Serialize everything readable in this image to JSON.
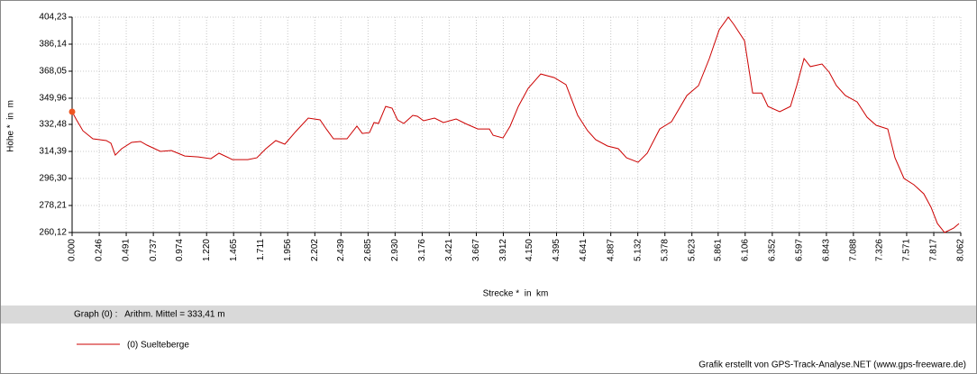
{
  "chart_data": {
    "type": "line",
    "y_label": "Höhe *  in  m",
    "x_label": "Strecke *  in  km",
    "stats": "Graph (0) :   Arithm. Mittel = 333,41 m",
    "credit": "Grafik erstellt von GPS-Track-Analyse.NET (www.gps-freeware.de)",
    "grid": true,
    "xlim": [
      0,
      8.062
    ],
    "ylim": [
      260.12,
      404.23
    ],
    "yticks": [
      {
        "value": 260.12,
        "label": "260,12"
      },
      {
        "value": 278.21,
        "label": "278,21"
      },
      {
        "value": 296.3,
        "label": "296,30"
      },
      {
        "value": 314.39,
        "label": "314,39"
      },
      {
        "value": 332.48,
        "label": "332,48"
      },
      {
        "value": 349.96,
        "label": "349,96"
      },
      {
        "value": 368.05,
        "label": "368,05"
      },
      {
        "value": 386.14,
        "label": "386,14"
      },
      {
        "value": 404.23,
        "label": "404,23"
      }
    ],
    "xticks": [
      {
        "value": 0,
        "label": "0.000"
      },
      {
        "value": 0.246,
        "label": "0.246"
      },
      {
        "value": 0.491,
        "label": "0.491"
      },
      {
        "value": 0.737,
        "label": "0.737"
      },
      {
        "value": 0.974,
        "label": "0.974"
      },
      {
        "value": 1.22,
        "label": "1.220"
      },
      {
        "value": 1.465,
        "label": "1.465"
      },
      {
        "value": 1.711,
        "label": "1.711"
      },
      {
        "value": 1.956,
        "label": "1.956"
      },
      {
        "value": 2.202,
        "label": "2.202"
      },
      {
        "value": 2.439,
        "label": "2.439"
      },
      {
        "value": 2.685,
        "label": "2.685"
      },
      {
        "value": 2.93,
        "label": "2.930"
      },
      {
        "value": 3.176,
        "label": "3.176"
      },
      {
        "value": 3.421,
        "label": "3.421"
      },
      {
        "value": 3.667,
        "label": "3.667"
      },
      {
        "value": 3.912,
        "label": "3.912"
      },
      {
        "value": 4.15,
        "label": "4.150"
      },
      {
        "value": 4.395,
        "label": "4.395"
      },
      {
        "value": 4.641,
        "label": "4.641"
      },
      {
        "value": 4.887,
        "label": "4.887"
      },
      {
        "value": 5.132,
        "label": "5.132"
      },
      {
        "value": 5.378,
        "label": "5.378"
      },
      {
        "value": 5.623,
        "label": "5.623"
      },
      {
        "value": 5.861,
        "label": "5.861"
      },
      {
        "value": 6.106,
        "label": "6.106"
      },
      {
        "value": 6.352,
        "label": "6.352"
      },
      {
        "value": 6.597,
        "label": "6.597"
      },
      {
        "value": 6.843,
        "label": "6.843"
      },
      {
        "value": 7.088,
        "label": "7.088"
      },
      {
        "value": 7.326,
        "label": "7.326"
      },
      {
        "value": 7.571,
        "label": "7.571"
      },
      {
        "value": 7.817,
        "label": "7.817"
      },
      {
        "value": 8.062,
        "label": "8.062"
      }
    ],
    "x": [
      0,
      0.04,
      0.098,
      0.188,
      0.311,
      0.352,
      0.392,
      0.45,
      0.54,
      0.621,
      0.679,
      0.801,
      0.9,
      1.022,
      1.145,
      1.259,
      1.333,
      1.455,
      1.594,
      1.676,
      1.758,
      1.848,
      1.93,
      2.028,
      2.142,
      2.249,
      2.306,
      2.371,
      2.494,
      2.584,
      2.633,
      2.698,
      2.739,
      2.78,
      2.845,
      2.903,
      2.952,
      3.009,
      3.091,
      3.132,
      3.189,
      3.288,
      3.369,
      3.484,
      3.566,
      3.68,
      3.786,
      3.819,
      3.909,
      3.974,
      4.048,
      4.137,
      4.252,
      4.374,
      4.481,
      4.587,
      4.677,
      4.75,
      4.857,
      4.955,
      5.029,
      5.135,
      5.217,
      5.331,
      5.438,
      5.577,
      5.683,
      5.781,
      5.871,
      5.953,
      6.002,
      6.1,
      6.174,
      6.256,
      6.313,
      6.419,
      6.517,
      6.574,
      6.64,
      6.697,
      6.803,
      6.868,
      6.934,
      7.015,
      7.122,
      7.212,
      7.294,
      7.4,
      7.465,
      7.547,
      7.637,
      7.727,
      7.792,
      7.85,
      7.915,
      7.997,
      8.046
    ],
    "series": [
      {
        "name": "(0) Suelteberge",
        "color": "#cc0000",
        "values": [
          340.9,
          335.5,
          328.2,
          322.8,
          321.6,
          319.8,
          311.9,
          316.2,
          320.4,
          321.0,
          318.6,
          314.4,
          315.0,
          311.3,
          310.7,
          309.5,
          313.2,
          308.9,
          308.9,
          310.1,
          316.2,
          321.6,
          319.2,
          327.6,
          336.7,
          335.5,
          329.4,
          322.8,
          322.8,
          331.3,
          326.4,
          327.0,
          333.7,
          333.1,
          344.5,
          343.3,
          335.5,
          333.1,
          338.5,
          337.9,
          334.9,
          336.7,
          333.7,
          336.1,
          333.1,
          329.4,
          329.4,
          325.2,
          323.4,
          331.3,
          344.5,
          356.6,
          366.2,
          363.8,
          359.0,
          338.5,
          328.2,
          322.2,
          318.0,
          316.2,
          310.1,
          307.1,
          313.2,
          329.4,
          334.3,
          351.8,
          358.4,
          376.5,
          395.8,
          404.2,
          399.4,
          388.5,
          353.4,
          353.4,
          344.5,
          340.9,
          344.5,
          358.4,
          376.5,
          371.1,
          372.9,
          367.4,
          358.4,
          351.8,
          347.5,
          337.3,
          331.9,
          329.4,
          310.1,
          296.3,
          292.1,
          286.0,
          277.0,
          266.1,
          260.1,
          263.1,
          266.1
        ]
      }
    ]
  }
}
